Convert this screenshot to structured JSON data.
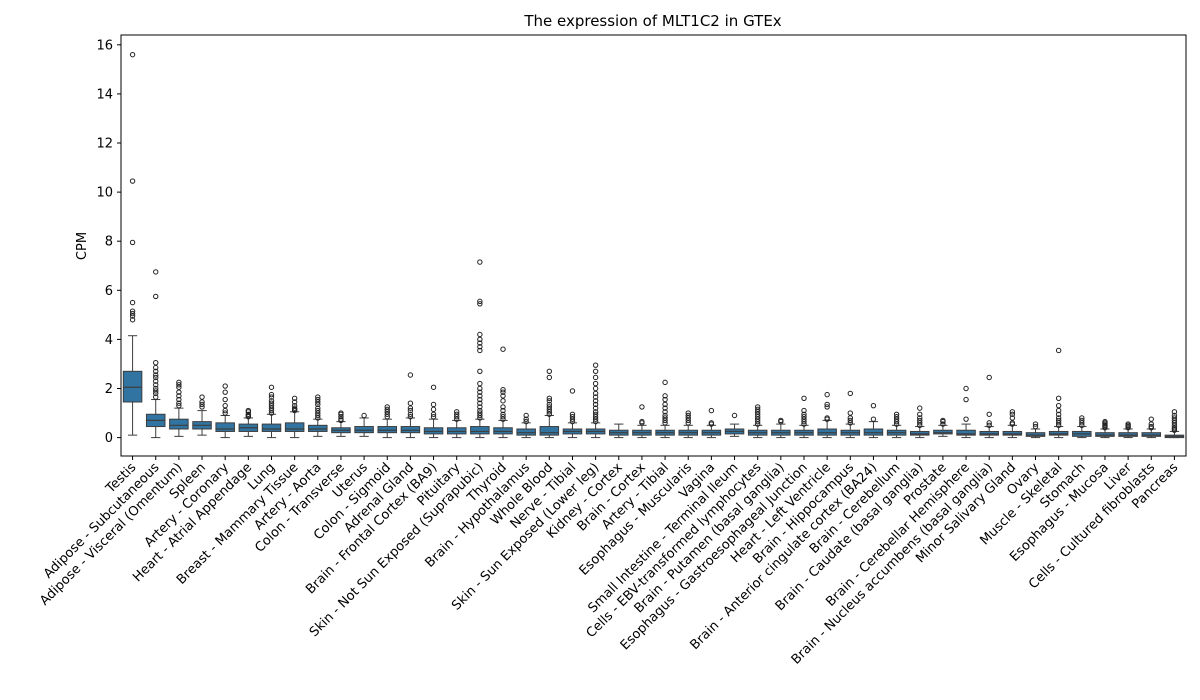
{
  "chart_data": {
    "type": "box",
    "title": "The expression of MLT1C2 in GTEx",
    "xlabel": "",
    "ylabel": "CPM",
    "ylim": [
      -0.75,
      16.4
    ],
    "yticks": [
      0,
      2,
      4,
      6,
      8,
      10,
      12,
      14,
      16
    ],
    "box_color": "#3274a1",
    "grid": false,
    "categories": [
      "Testis",
      "Adipose - Subcutaneous",
      "Adipose - Visceral (Omentum)",
      "Spleen",
      "Artery - Coronary",
      "Heart - Atrial Appendage",
      "Lung",
      "Breast - Mammary Tissue",
      "Artery - Aorta",
      "Colon - Transverse",
      "Uterus",
      "Colon - Sigmoid",
      "Adrenal Gland",
      "Brain - Frontal Cortex (BA9)",
      "Pituitary",
      "Skin - Not Sun Exposed (Suprapubic)",
      "Thyroid",
      "Brain - Hypothalamus",
      "Whole Blood",
      "Nerve - Tibial",
      "Skin - Sun Exposed (Lower leg)",
      "Kidney - Cortex",
      "Brain - Cortex",
      "Artery - Tibial",
      "Esophagus - Muscularis",
      "Vagina",
      "Small Intestine - Terminal Ileum",
      "Cells - EBV-transformed lymphocytes",
      "Brain - Putamen (basal ganglia)",
      "Esophagus - Gastroesophageal Junction",
      "Heart - Left Ventricle",
      "Brain - Hippocampus",
      "Brain - Anterior cingulate cortex (BA24)",
      "Brain - Cerebellum",
      "Brain - Caudate (basal ganglia)",
      "Prostate",
      "Brain - Cerebellar Hemisphere",
      "Brain - Nucleus accumbens (basal ganglia)",
      "Minor Salivary Gland",
      "Ovary",
      "Muscle - Skeletal",
      "Stomach",
      "Esophagus - Mucosa",
      "Liver",
      "Cells - Cultured fibroblasts",
      "Pancreas"
    ],
    "boxes": [
      {
        "whislo": 0.1,
        "q1": 1.45,
        "med": 2.05,
        "q3": 2.7,
        "whishi": 4.15,
        "fliers": [
          4.8,
          4.95,
          5.05,
          5.15,
          5.5,
          7.95,
          10.45,
          15.6
        ]
      },
      {
        "whislo": 0.0,
        "q1": 0.45,
        "med": 0.7,
        "q3": 0.95,
        "whishi": 1.55,
        "fliers": [
          1.65,
          1.8,
          1.9,
          2.0,
          2.15,
          2.3,
          2.45,
          2.55,
          2.7,
          2.85,
          3.05,
          5.75,
          6.75
        ]
      },
      {
        "whislo": 0.05,
        "q1": 0.35,
        "med": 0.5,
        "q3": 0.75,
        "whishi": 1.2,
        "fliers": [
          1.3,
          1.4,
          1.55,
          1.7,
          1.85,
          2.05,
          2.15,
          2.25
        ]
      },
      {
        "whislo": 0.1,
        "q1": 0.35,
        "med": 0.5,
        "q3": 0.65,
        "whishi": 1.1,
        "fliers": [
          1.25,
          1.35,
          1.45,
          1.65
        ]
      },
      {
        "whislo": 0.0,
        "q1": 0.25,
        "med": 0.35,
        "q3": 0.6,
        "whishi": 0.9,
        "fliers": [
          1.0,
          1.1,
          1.3,
          1.55,
          1.85,
          2.1
        ]
      },
      {
        "whislo": 0.05,
        "q1": 0.25,
        "med": 0.4,
        "q3": 0.55,
        "whishi": 0.8,
        "fliers": [
          0.85,
          0.9,
          0.95,
          1.05,
          1.1
        ]
      },
      {
        "whislo": 0.0,
        "q1": 0.25,
        "med": 0.35,
        "q3": 0.55,
        "whishi": 0.95,
        "fliers": [
          1.0,
          1.1,
          1.2,
          1.3,
          1.4,
          1.5,
          1.65,
          1.75,
          2.05
        ]
      },
      {
        "whislo": 0.0,
        "q1": 0.25,
        "med": 0.35,
        "q3": 0.6,
        "whishi": 1.05,
        "fliers": [
          1.1,
          1.15,
          1.2,
          1.3,
          1.45,
          1.6
        ]
      },
      {
        "whislo": 0.05,
        "q1": 0.25,
        "med": 0.35,
        "q3": 0.5,
        "whishi": 0.75,
        "fliers": [
          0.8,
          0.9,
          1.0,
          1.1,
          1.2,
          1.35,
          1.45,
          1.55,
          1.65
        ]
      },
      {
        "whislo": 0.05,
        "q1": 0.2,
        "med": 0.3,
        "q3": 0.4,
        "whishi": 0.65,
        "fliers": [
          0.7,
          0.75,
          0.85,
          0.95,
          1.0
        ]
      },
      {
        "whislo": 0.05,
        "q1": 0.2,
        "med": 0.3,
        "q3": 0.45,
        "whishi": 0.8,
        "fliers": [
          0.9
        ]
      },
      {
        "whislo": 0.0,
        "q1": 0.2,
        "med": 0.3,
        "q3": 0.45,
        "whishi": 0.75,
        "fliers": [
          0.85,
          0.95,
          1.05,
          1.15,
          1.25
        ]
      },
      {
        "whislo": 0.0,
        "q1": 0.2,
        "med": 0.3,
        "q3": 0.45,
        "whishi": 0.8,
        "fliers": [
          0.85,
          0.95,
          1.1,
          1.2,
          1.4,
          2.55
        ]
      },
      {
        "whislo": 0.0,
        "q1": 0.15,
        "med": 0.25,
        "q3": 0.4,
        "whishi": 0.75,
        "fliers": [
          0.85,
          0.95,
          1.15,
          1.35,
          2.05
        ]
      },
      {
        "whislo": 0.0,
        "q1": 0.15,
        "med": 0.25,
        "q3": 0.4,
        "whishi": 0.7,
        "fliers": [
          0.75,
          0.85,
          0.95,
          1.05
        ]
      },
      {
        "whislo": 0.0,
        "q1": 0.15,
        "med": 0.25,
        "q3": 0.45,
        "whishi": 0.75,
        "fliers": [
          0.8,
          0.9,
          1.0,
          1.1,
          1.25,
          1.4,
          1.55,
          1.7,
          1.85,
          2.0,
          2.2,
          2.7,
          3.55,
          3.7,
          3.85,
          4.0,
          4.2,
          5.45,
          5.55,
          7.15
        ]
      },
      {
        "whislo": 0.0,
        "q1": 0.15,
        "med": 0.25,
        "q3": 0.4,
        "whishi": 0.7,
        "fliers": [
          0.75,
          0.85,
          0.95,
          1.1,
          1.25,
          1.5,
          1.7,
          1.85,
          1.95,
          3.6
        ]
      },
      {
        "whislo": 0.0,
        "q1": 0.1,
        "med": 0.2,
        "q3": 0.35,
        "whishi": 0.6,
        "fliers": [
          0.65,
          0.75,
          0.9
        ]
      },
      {
        "whislo": 0.0,
        "q1": 0.1,
        "med": 0.2,
        "q3": 0.45,
        "whishi": 0.9,
        "fliers": [
          0.95,
          1.05,
          1.15,
          1.25,
          1.35,
          1.5,
          1.6,
          2.45,
          2.7
        ]
      },
      {
        "whislo": 0.0,
        "q1": 0.15,
        "med": 0.25,
        "q3": 0.35,
        "whishi": 0.6,
        "fliers": [
          0.65,
          0.75,
          0.85,
          0.95,
          1.9
        ]
      },
      {
        "whislo": 0.0,
        "q1": 0.15,
        "med": 0.25,
        "q3": 0.35,
        "whishi": 0.6,
        "fliers": [
          0.65,
          0.75,
          0.85,
          0.95,
          1.05,
          1.2,
          1.35,
          1.5,
          1.65,
          1.8,
          2.0,
          2.2,
          2.45,
          2.7,
          2.95
        ]
      },
      {
        "whislo": 0.0,
        "q1": 0.1,
        "med": 0.2,
        "q3": 0.3,
        "whishi": 0.55,
        "fliers": []
      },
      {
        "whislo": 0.0,
        "q1": 0.1,
        "med": 0.2,
        "q3": 0.3,
        "whishi": 0.5,
        "fliers": [
          0.6,
          0.65,
          1.25
        ]
      },
      {
        "whislo": 0.0,
        "q1": 0.1,
        "med": 0.2,
        "q3": 0.3,
        "whishi": 0.5,
        "fliers": [
          0.6,
          0.7,
          0.8,
          0.9,
          1.05,
          1.2,
          1.35,
          1.55,
          1.7,
          2.25
        ]
      },
      {
        "whislo": 0.0,
        "q1": 0.1,
        "med": 0.2,
        "q3": 0.3,
        "whishi": 0.5,
        "fliers": [
          0.6,
          0.7,
          0.8,
          0.9,
          1.0
        ]
      },
      {
        "whislo": 0.0,
        "q1": 0.1,
        "med": 0.2,
        "q3": 0.3,
        "whishi": 0.5,
        "fliers": [
          0.55,
          0.6,
          1.1
        ]
      },
      {
        "whislo": 0.05,
        "q1": 0.15,
        "med": 0.25,
        "q3": 0.35,
        "whishi": 0.55,
        "fliers": [
          0.9
        ]
      },
      {
        "whislo": 0.0,
        "q1": 0.1,
        "med": 0.2,
        "q3": 0.3,
        "whishi": 0.5,
        "fliers": [
          0.55,
          0.65,
          0.75,
          0.85,
          0.95,
          1.05,
          1.15,
          1.25
        ]
      },
      {
        "whislo": 0.0,
        "q1": 0.1,
        "med": 0.2,
        "q3": 0.3,
        "whishi": 0.55,
        "fliers": [
          0.65,
          0.7
        ]
      },
      {
        "whislo": 0.0,
        "q1": 0.1,
        "med": 0.2,
        "q3": 0.3,
        "whishi": 0.5,
        "fliers": [
          0.55,
          0.65,
          0.75,
          0.85,
          0.95,
          1.1,
          1.6
        ]
      },
      {
        "whislo": 0.0,
        "q1": 0.1,
        "med": 0.2,
        "q3": 0.35,
        "whishi": 0.7,
        "fliers": [
          0.75,
          0.8,
          1.25,
          1.35,
          1.75
        ]
      },
      {
        "whislo": 0.0,
        "q1": 0.1,
        "med": 0.2,
        "q3": 0.3,
        "whishi": 0.55,
        "fliers": [
          0.6,
          0.7,
          0.8,
          1.0,
          1.8
        ]
      },
      {
        "whislo": 0.0,
        "q1": 0.1,
        "med": 0.2,
        "q3": 0.35,
        "whishi": 0.65,
        "fliers": [
          0.75,
          1.3
        ]
      },
      {
        "whislo": 0.0,
        "q1": 0.1,
        "med": 0.2,
        "q3": 0.3,
        "whishi": 0.5,
        "fliers": [
          0.55,
          0.65,
          0.75,
          0.85,
          0.95
        ]
      },
      {
        "whislo": 0.0,
        "q1": 0.1,
        "med": 0.15,
        "q3": 0.25,
        "whishi": 0.45,
        "fliers": [
          0.5,
          0.6,
          0.7,
          0.8,
          0.95,
          1.2
        ]
      },
      {
        "whislo": 0.05,
        "q1": 0.15,
        "med": 0.2,
        "q3": 0.3,
        "whishi": 0.5,
        "fliers": [
          0.55,
          0.65,
          0.7
        ]
      },
      {
        "whislo": 0.0,
        "q1": 0.1,
        "med": 0.15,
        "q3": 0.3,
        "whishi": 0.55,
        "fliers": [
          0.75,
          1.55,
          2.0
        ]
      },
      {
        "whislo": 0.0,
        "q1": 0.1,
        "med": 0.15,
        "q3": 0.25,
        "whishi": 0.45,
        "fliers": [
          0.5,
          0.6,
          0.95,
          2.45
        ]
      },
      {
        "whislo": 0.0,
        "q1": 0.1,
        "med": 0.15,
        "q3": 0.25,
        "whishi": 0.5,
        "fliers": [
          0.55,
          0.6,
          0.8,
          0.95,
          1.05
        ]
      },
      {
        "whislo": 0.0,
        "q1": 0.05,
        "med": 0.1,
        "q3": 0.2,
        "whishi": 0.35,
        "fliers": [
          0.45,
          0.55
        ]
      },
      {
        "whislo": 0.0,
        "q1": 0.1,
        "med": 0.15,
        "q3": 0.25,
        "whishi": 0.45,
        "fliers": [
          0.5,
          0.6,
          0.7,
          0.8,
          0.95,
          1.1,
          1.3,
          1.6,
          3.55
        ]
      },
      {
        "whislo": 0.0,
        "q1": 0.05,
        "med": 0.15,
        "q3": 0.25,
        "whishi": 0.45,
        "fliers": [
          0.5,
          0.6,
          0.7,
          0.8
        ]
      },
      {
        "whislo": 0.0,
        "q1": 0.05,
        "med": 0.1,
        "q3": 0.2,
        "whishi": 0.35,
        "fliers": [
          0.4,
          0.45,
          0.5,
          0.55,
          0.6,
          0.65
        ]
      },
      {
        "whislo": 0.0,
        "q1": 0.05,
        "med": 0.1,
        "q3": 0.2,
        "whishi": 0.35,
        "fliers": [
          0.4,
          0.45,
          0.5,
          0.55
        ]
      },
      {
        "whislo": 0.0,
        "q1": 0.05,
        "med": 0.1,
        "q3": 0.2,
        "whishi": 0.35,
        "fliers": [
          0.4,
          0.45,
          0.55,
          0.75
        ]
      },
      {
        "whislo": 0.0,
        "q1": 0.0,
        "med": 0.05,
        "q3": 0.1,
        "whishi": 0.25,
        "fliers": [
          0.3,
          0.35,
          0.4,
          0.5,
          0.6,
          0.7,
          0.8,
          0.9,
          1.05
        ]
      }
    ]
  }
}
